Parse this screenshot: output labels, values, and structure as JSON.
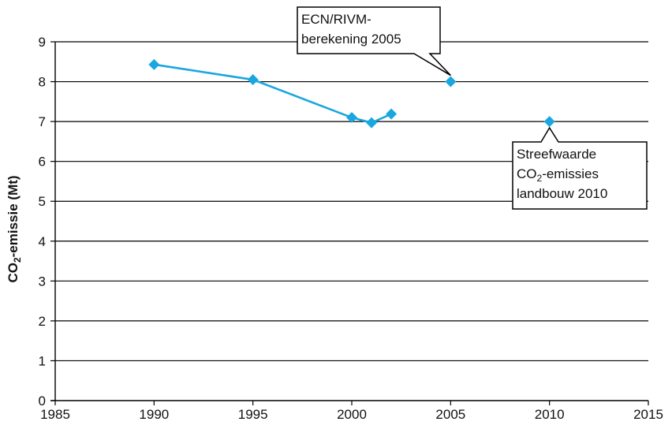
{
  "chart_data": {
    "type": "scatter",
    "ylabel": {
      "main": "CO",
      "sub": "2",
      "rest": "-emissie (Mt)"
    },
    "xlim": [
      1985,
      2015
    ],
    "ylim": [
      0,
      9
    ],
    "xticks": [
      "1985",
      "1990",
      "1995",
      "2000",
      "2005",
      "2010",
      "2015"
    ],
    "yticks": [
      "0",
      "1",
      "2",
      "3",
      "4",
      "5",
      "6",
      "7",
      "8",
      "9"
    ],
    "grid": "horizontal",
    "series_color": "#1aa7e0",
    "series": [
      {
        "x": [
          1990,
          1995,
          2000,
          2001,
          2002
        ],
        "y": [
          8.43,
          8.05,
          7.1,
          6.97,
          7.19
        ],
        "line": true
      },
      {
        "x": [
          2005
        ],
        "y": [
          8.0
        ],
        "line": false
      },
      {
        "x": [
          2010
        ],
        "y": [
          7.0
        ],
        "line": false
      }
    ],
    "annotations": [
      {
        "lines": [
          {
            "text": "ECN/RIVM-"
          },
          {
            "text": "berekening 2005"
          }
        ],
        "point": [
          2005,
          8.0
        ]
      },
      {
        "lines": [
          {
            "text": "Streefwaarde"
          },
          {
            "text": "CO",
            "sub": "2",
            "rest": "-emissies"
          },
          {
            "text": "landbouw 2010"
          }
        ],
        "point": [
          2010,
          7.0
        ]
      }
    ]
  }
}
